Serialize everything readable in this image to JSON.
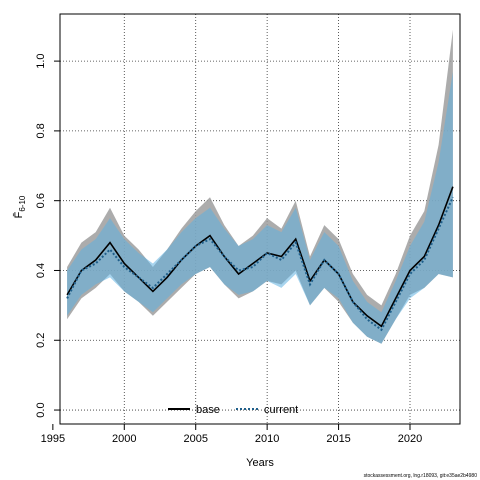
{
  "chart_data": {
    "type": "line",
    "xlabel": "Years",
    "ylabel": "F̄",
    "ylabel_subscript": "6-10",
    "xlim": [
      1995.5,
      2023.5
    ],
    "ylim": [
      -0.04,
      1.135
    ],
    "xticks": [
      1995,
      2000,
      2005,
      2010,
      2015,
      2020
    ],
    "yticks": [
      0.0,
      0.2,
      0.4,
      0.6,
      0.8,
      1.0
    ],
    "ytick_labels": [
      "0.0",
      "0.2",
      "0.4",
      "0.6",
      "0.8",
      "1.0"
    ],
    "grid": true,
    "legend_position": "bottom",
    "x": [
      1996,
      1997,
      1998,
      1999,
      2000,
      2001,
      2002,
      2003,
      2004,
      2005,
      2006,
      2007,
      2008,
      2009,
      2010,
      2011,
      2012,
      2013,
      2014,
      2015,
      2016,
      2017,
      2018,
      2019,
      2020,
      2021,
      2022,
      2023
    ],
    "series": [
      {
        "name": "base",
        "style": "solid",
        "color": "#000000",
        "band_color": "#9e9e9e",
        "values": [
          0.33,
          0.4,
          0.43,
          0.48,
          0.42,
          0.38,
          0.34,
          0.38,
          0.43,
          0.47,
          0.5,
          0.44,
          0.39,
          0.42,
          0.45,
          0.44,
          0.49,
          0.37,
          0.43,
          0.39,
          0.31,
          0.27,
          0.24,
          0.32,
          0.4,
          0.44,
          0.53,
          0.64
        ],
        "lower": [
          0.26,
          0.32,
          0.35,
          0.39,
          0.34,
          0.31,
          0.27,
          0.31,
          0.35,
          0.39,
          0.41,
          0.36,
          0.32,
          0.34,
          0.37,
          0.36,
          0.4,
          0.3,
          0.35,
          0.31,
          0.25,
          0.21,
          0.19,
          0.26,
          0.33,
          0.35,
          0.39,
          0.38
        ],
        "upper": [
          0.41,
          0.48,
          0.51,
          0.58,
          0.5,
          0.46,
          0.41,
          0.46,
          0.52,
          0.57,
          0.61,
          0.53,
          0.47,
          0.5,
          0.55,
          0.52,
          0.6,
          0.44,
          0.53,
          0.49,
          0.39,
          0.33,
          0.3,
          0.39,
          0.5,
          0.57,
          0.76,
          1.09
        ]
      },
      {
        "name": "current",
        "style": "dotted",
        "color": "#1f5f8b",
        "band_color": "#5fb0e0",
        "values": [
          0.32,
          0.4,
          0.42,
          0.46,
          0.41,
          0.38,
          0.35,
          0.39,
          0.43,
          0.47,
          0.49,
          0.44,
          0.4,
          0.41,
          0.45,
          0.43,
          0.48,
          0.36,
          0.43,
          0.39,
          0.31,
          0.26,
          0.23,
          0.31,
          0.39,
          0.43,
          0.52,
          0.61
        ],
        "lower": [
          0.27,
          0.33,
          0.36,
          0.38,
          0.34,
          0.31,
          0.28,
          0.32,
          0.36,
          0.39,
          0.41,
          0.36,
          0.33,
          0.34,
          0.37,
          0.35,
          0.39,
          0.3,
          0.35,
          0.32,
          0.25,
          0.21,
          0.19,
          0.26,
          0.32,
          0.35,
          0.39,
          0.38
        ],
        "upper": [
          0.4,
          0.46,
          0.49,
          0.55,
          0.49,
          0.45,
          0.42,
          0.46,
          0.51,
          0.55,
          0.58,
          0.52,
          0.47,
          0.49,
          0.53,
          0.51,
          0.58,
          0.43,
          0.51,
          0.47,
          0.37,
          0.31,
          0.28,
          0.37,
          0.47,
          0.54,
          0.71,
          0.97
        ]
      }
    ]
  },
  "footer_note": "stockassessment.org, lng.r18093, git:e35ae2b4980"
}
